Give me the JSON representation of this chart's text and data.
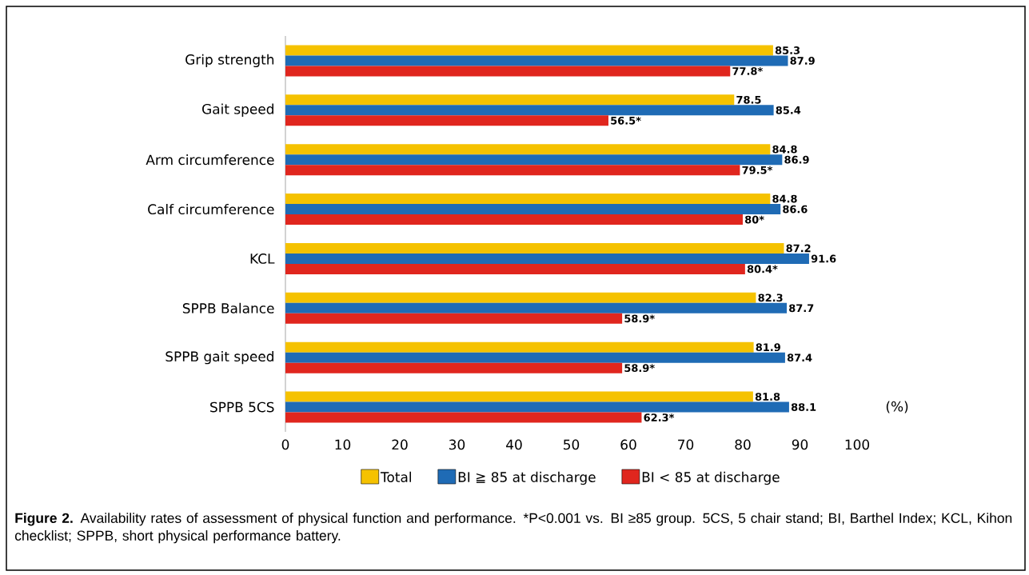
{
  "chart_data": {
    "type": "bar",
    "orientation": "horizontal",
    "categories": [
      "Grip strength",
      "Gait speed",
      "Arm circumference",
      "Calf circumference",
      "KCL",
      "SPPB Balance",
      "SPPB gait speed",
      "SPPB 5CS"
    ],
    "series": [
      {
        "name": "Total",
        "color": "#f5c200",
        "values": [
          85.3,
          78.5,
          84.8,
          84.8,
          87.2,
          82.3,
          81.9,
          81.8
        ],
        "value_labels": [
          "85.3",
          "78.5",
          "84.8",
          "84.8",
          "87.2",
          "82.3",
          "81.9",
          "81.8"
        ]
      },
      {
        "name": "BI ≧ 85 at discharge",
        "color": "#1f6bb5",
        "values": [
          87.9,
          85.4,
          86.9,
          86.6,
          91.6,
          87.7,
          87.4,
          88.1
        ],
        "value_labels": [
          "87.9",
          "85.4",
          "86.9",
          "86.6",
          "91.6",
          "87.7",
          "87.4",
          "88.1"
        ]
      },
      {
        "name": "BI < 85 at discharge",
        "color": "#e0261e",
        "values": [
          77.8,
          56.5,
          79.5,
          80,
          80.4,
          58.9,
          58.9,
          62.3
        ],
        "value_labels": [
          "77.8*",
          "56.5*",
          "79.5*",
          "80*",
          "80.4*",
          "58.9*",
          "58.9*",
          "62.3*"
        ]
      }
    ],
    "xlim": [
      0,
      100
    ],
    "xticks": [
      0,
      10,
      20,
      30,
      40,
      50,
      60,
      70,
      80,
      90,
      100
    ],
    "legend": "bottom",
    "annotations": [
      "(%)",
      "**Figure 2.** Availability rates of assessment of physical function and performance. *P<0.001 vs. BI ≥85 group. 5CS, 5 chair stand; BI, Barthel Index; KCL, Kihon checklist; SPPB, short physical performance battery."
    ]
  }
}
